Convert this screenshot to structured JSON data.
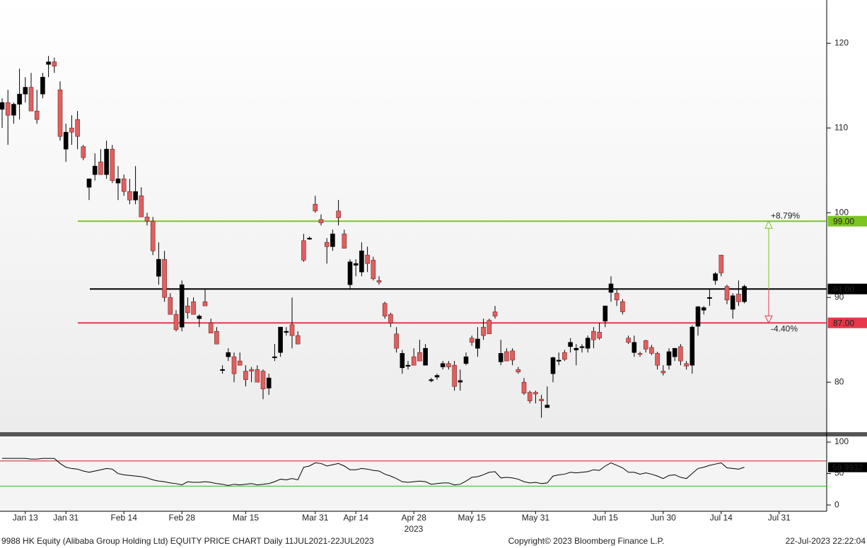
{
  "chart_data": {
    "type": "candlestick",
    "ylim": [
      74.1,
      125.1
    ],
    "yticks": [
      80,
      90,
      100,
      110,
      120
    ],
    "up_color": "#000000",
    "down_color": "#e06060",
    "categories": [
      null,
      null,
      null,
      null,
      "Jan 13",
      null,
      null,
      null,
      null,
      null,
      null,
      "Jan 31",
      null,
      null,
      null,
      null,
      null,
      null,
      null,
      null,
      null,
      "Feb 14",
      null,
      null,
      null,
      null,
      null,
      null,
      null,
      null,
      null,
      "Feb 28",
      null,
      null,
      null,
      null,
      null,
      null,
      null,
      null,
      null,
      null,
      "Mar 15",
      null,
      null,
      null,
      null,
      null,
      null,
      null,
      null,
      null,
      null,
      null,
      "Mar 31",
      null,
      null,
      null,
      null,
      null,
      null,
      "Apr 14",
      null,
      null,
      null,
      null,
      null,
      null,
      null,
      null,
      null,
      "Apr 28",
      null,
      null,
      null,
      null,
      null,
      null,
      null,
      null,
      null,
      "May 15",
      null,
      null,
      null,
      null,
      null,
      null,
      null,
      null,
      null,
      null,
      "May 31",
      null,
      null,
      null,
      null,
      null,
      null,
      null,
      null,
      null,
      null,
      null,
      "Jun 15",
      null,
      null,
      null,
      null,
      null,
      null,
      null,
      null,
      null,
      "Jun 30",
      null,
      null,
      null,
      null,
      null,
      null,
      null,
      null,
      null,
      "Jul 14",
      null,
      null,
      null,
      null,
      null,
      null,
      null,
      null,
      null,
      "Jul 31"
    ],
    "year_label": "2023",
    "candles": [
      [
        112.2,
        113.5,
        110,
        113
      ],
      [
        113,
        114.5,
        108,
        111.5
      ],
      [
        111.5,
        113,
        110.5,
        112.8
      ],
      [
        112.8,
        117,
        111,
        114
      ],
      [
        114,
        116,
        113,
        114.8
      ],
      [
        114.8,
        116.5,
        112.5,
        112
      ],
      [
        112,
        114.5,
        110.5,
        111
      ],
      [
        114,
        116.5,
        113.5,
        116
      ],
      [
        117.5,
        118.5,
        116,
        117.8
      ],
      [
        117.8,
        118.3,
        116.5,
        117.3
      ],
      [
        114.5,
        115.5,
        108.5,
        109
      ],
      [
        107.5,
        110.5,
        106,
        109.5
      ],
      [
        110,
        111.5,
        108,
        109.5
      ],
      [
        111,
        112,
        107.5,
        109
      ],
      [
        107.8,
        108,
        106.2,
        106.5
      ],
      [
        103,
        104,
        101.5,
        104
      ],
      [
        104.5,
        107,
        103.8,
        105.5
      ],
      [
        106,
        107.5,
        104.5,
        104.5
      ],
      [
        104.5,
        108.5,
        104,
        107.5
      ],
      [
        107.5,
        108,
        103.5,
        103.8
      ],
      [
        103.5,
        105.5,
        101.5,
        104
      ],
      [
        104,
        104.5,
        102,
        102.5
      ],
      [
        102.5,
        104,
        101,
        101.5
      ],
      [
        101.5,
        105.5,
        101,
        102.5
      ],
      [
        102,
        103,
        99.5,
        99.5
      ],
      [
        99.5,
        100,
        98.5,
        99
      ],
      [
        99,
        99.5,
        95,
        95.5
      ],
      [
        92.5,
        96.5,
        91.5,
        94.5
      ],
      [
        94.5,
        95.5,
        89.5,
        90
      ],
      [
        90,
        90.5,
        88,
        88
      ],
      [
        88,
        88.5,
        86,
        86.2
      ],
      [
        86.5,
        92,
        86,
        91.5
      ],
      [
        89,
        90,
        87.5,
        88.2
      ],
      [
        89.5,
        90,
        88,
        88
      ],
      [
        87.5,
        88,
        86.5,
        87.8
      ],
      [
        89.5,
        91,
        89,
        89
      ],
      [
        87,
        87.5,
        86,
        85.8
      ],
      [
        86,
        86.5,
        84.5,
        84.5
      ],
      [
        81.5,
        82,
        81,
        81.5
      ],
      [
        83,
        84,
        82.5,
        83.5
      ],
      [
        83,
        83.5,
        80,
        81
      ],
      [
        82.5,
        83.5,
        82,
        82
      ],
      [
        81.3,
        82,
        79.5,
        80.3
      ],
      [
        81.5,
        81.8,
        80,
        81.3
      ],
      [
        81.5,
        82,
        80,
        80
      ],
      [
        81.3,
        81.5,
        78,
        79.2
      ],
      [
        79.3,
        81,
        78.5,
        80.5
      ],
      [
        83,
        84.5,
        82.5,
        83
      ],
      [
        83.5,
        86.5,
        83,
        86.5
      ],
      [
        86,
        86.5,
        85.5,
        86
      ],
      [
        86.8,
        90,
        84,
        85.5
      ],
      [
        85.5,
        86,
        84.5,
        84.5
      ],
      [
        96.7,
        97.5,
        94.2,
        94.4
      ],
      [
        97,
        97.2,
        96.8,
        97
      ],
      [
        101,
        102,
        100,
        100.2
      ],
      [
        99.2,
        99.8,
        98.5,
        98.8
      ],
      [
        96.5,
        97,
        94,
        96
      ],
      [
        96,
        98,
        95.5,
        97.5
      ],
      [
        100.2,
        101.5,
        98.5,
        99.4
      ],
      [
        97.5,
        98,
        96,
        95.8
      ],
      [
        91.5,
        94.5,
        91,
        94.2
      ],
      [
        93.8,
        94.5,
        92.5,
        94
      ],
      [
        93,
        96.5,
        92.5,
        95.5
      ],
      [
        95,
        96,
        93,
        94
      ],
      [
        94.4,
        94.8,
        92,
        92.2
      ],
      [
        92,
        92.5,
        91.5,
        91.8
      ],
      [
        89.3,
        89.5,
        87.5,
        87.8
      ],
      [
        88,
        88.2,
        86.5,
        87
      ],
      [
        85.7,
        86.5,
        83.5,
        84
      ],
      [
        81.7,
        83.8,
        81,
        83.4
      ],
      [
        82,
        82.5,
        81.5,
        82
      ],
      [
        83,
        84,
        82,
        82
      ],
      [
        83.5,
        85,
        82.5,
        82.5
      ],
      [
        82,
        84.5,
        82,
        84
      ],
      [
        80.2,
        80.5,
        80,
        80.3
      ],
      [
        80.6,
        81,
        80.3,
        80.8
      ],
      [
        81.8,
        82.5,
        81.5,
        82.2
      ],
      [
        82.2,
        82.5,
        81.5,
        81.8
      ],
      [
        82,
        82.5,
        79,
        79.5
      ],
      [
        80,
        81.5,
        79,
        80.2
      ],
      [
        82.2,
        83.5,
        82,
        83
      ],
      [
        85.2,
        85.5,
        84.3,
        84.7
      ],
      [
        84,
        86.5,
        83,
        85.1
      ],
      [
        86.5,
        87.5,
        85,
        85.5
      ],
      [
        87.3,
        87.5,
        85.7,
        85.7
      ],
      [
        88.3,
        89,
        87.5,
        87.8
      ],
      [
        82.4,
        85,
        82,
        83.4
      ],
      [
        83.6,
        84,
        82.5,
        82.5
      ],
      [
        83.7,
        84,
        82,
        82.6
      ],
      [
        81.5,
        81.8,
        81,
        81.2
      ],
      [
        80,
        80.5,
        78.5,
        78.7
      ],
      [
        78.8,
        79,
        77.5,
        77.8
      ],
      [
        78.8,
        79,
        77.5,
        78.6
      ],
      [
        78,
        78.5,
        75.8,
        77.8
      ],
      [
        77,
        79.5,
        77,
        77.3
      ],
      [
        81,
        83,
        80,
        82.9
      ],
      [
        82.5,
        83.5,
        82,
        82.6
      ],
      [
        83.5,
        83.8,
        82.5,
        82.7
      ],
      [
        84.2,
        85.2,
        83.5,
        84.7
      ],
      [
        83.8,
        84.5,
        82,
        84
      ],
      [
        84.2,
        84.5,
        83.5,
        84.2
      ],
      [
        84,
        85.5,
        83.5,
        85.2
      ],
      [
        86,
        86.5,
        84,
        85
      ],
      [
        85.9,
        87,
        85,
        85.2
      ],
      [
        87.2,
        89,
        86.5,
        89
      ],
      [
        90.6,
        92.5,
        89.5,
        91.6
      ],
      [
        90.5,
        91,
        89,
        89.7
      ],
      [
        89.5,
        89.8,
        88,
        88.3
      ],
      [
        85.2,
        85.5,
        84.5,
        84.7
      ],
      [
        83.5,
        85.5,
        83,
        84.7
      ],
      [
        83.4,
        83.6,
        83,
        83.3
      ],
      [
        84.9,
        85,
        83.5,
        83.9
      ],
      [
        84.1,
        84.4,
        83.2,
        83.4
      ],
      [
        83.4,
        83.6,
        81.5,
        82
      ],
      [
        81.3,
        82,
        80.8,
        81.1
      ],
      [
        82,
        84,
        81.5,
        83.6
      ],
      [
        83,
        84,
        82.5,
        84
      ],
      [
        84.2,
        84.5,
        82,
        82.5
      ],
      [
        82.2,
        82.5,
        81.5,
        81.9
      ],
      [
        82,
        86.7,
        81,
        86.5
      ],
      [
        86.6,
        89,
        85.5,
        88.9
      ],
      [
        88.5,
        89,
        88,
        88.8
      ],
      [
        90,
        91,
        89,
        90
      ],
      [
        92,
        93,
        91.5,
        92.8
      ],
      [
        95,
        95,
        92.5,
        92.9
      ],
      [
        91.3,
        91.5,
        89.2,
        89.7
      ],
      [
        88.6,
        90.5,
        87.5,
        90.2
      ],
      [
        90.4,
        92,
        89,
        89.5
      ],
      [
        89.5,
        91.5,
        89.3,
        91.3
      ],
      null,
      null,
      null,
      null,
      null,
      null
    ],
    "levels": [
      {
        "value": 99,
        "label": "99.00",
        "color": "#7cc520",
        "text_color": "#000000"
      },
      {
        "value": 91,
        "label": "91.00",
        "color": "#000000",
        "text_color": "#ffffff"
      },
      {
        "value": 87,
        "label": "87.00",
        "color": "#e8364a",
        "text_color": "#ffffff"
      }
    ],
    "annotations": [
      {
        "text": "+8.79%",
        "color": "#7cc520"
      },
      {
        "text": "-4.40%",
        "color": "#e8364a"
      }
    ],
    "rsi": {
      "ylim": [
        -10,
        109
      ],
      "yticks": [
        0,
        50,
        100
      ],
      "color": "#000000",
      "levels": [
        {
          "value": 70,
          "color": "#d02020"
        },
        {
          "value": 30,
          "color": "#20c020"
        }
      ],
      "values": [
        74,
        74,
        74,
        74,
        74,
        73,
        73,
        74,
        74,
        74,
        66,
        60,
        58,
        57,
        54,
        52,
        54,
        56,
        58,
        57,
        50,
        48,
        47,
        46,
        45,
        43,
        40,
        38,
        37,
        35,
        34,
        32,
        37,
        36,
        36,
        37,
        36,
        34,
        33,
        31,
        33,
        32,
        33,
        34,
        32,
        33,
        34,
        37,
        41,
        40,
        42,
        40,
        60,
        62,
        67,
        66,
        62,
        64,
        66,
        62,
        56,
        56,
        58,
        57,
        55,
        54,
        49,
        46,
        42,
        37,
        36,
        37,
        38,
        37,
        33,
        34,
        35,
        35,
        32,
        33,
        38,
        44,
        45,
        48,
        52,
        53,
        43,
        44,
        43,
        41,
        37,
        35,
        36,
        34,
        35,
        46,
        48,
        49,
        52,
        51,
        52,
        53,
        56,
        55,
        62,
        67,
        63,
        59,
        52,
        52,
        49,
        51,
        49,
        46,
        42,
        47,
        48,
        44,
        42,
        50,
        58,
        60,
        63,
        65,
        67,
        59,
        58,
        57,
        59.9932,
        null,
        null,
        null,
        null,
        null,
        null
      ]
    },
    "footer_left": "9988 HK Equity (Alibaba Group Holding Ltd) EQUITY PRICE CHART  Daily 11JUL2021-22JUL2023",
    "footer_center": "Copyright© 2023 Bloomberg Finance L.P.",
    "footer_right": "22-Jul-2023 22:22:04"
  }
}
